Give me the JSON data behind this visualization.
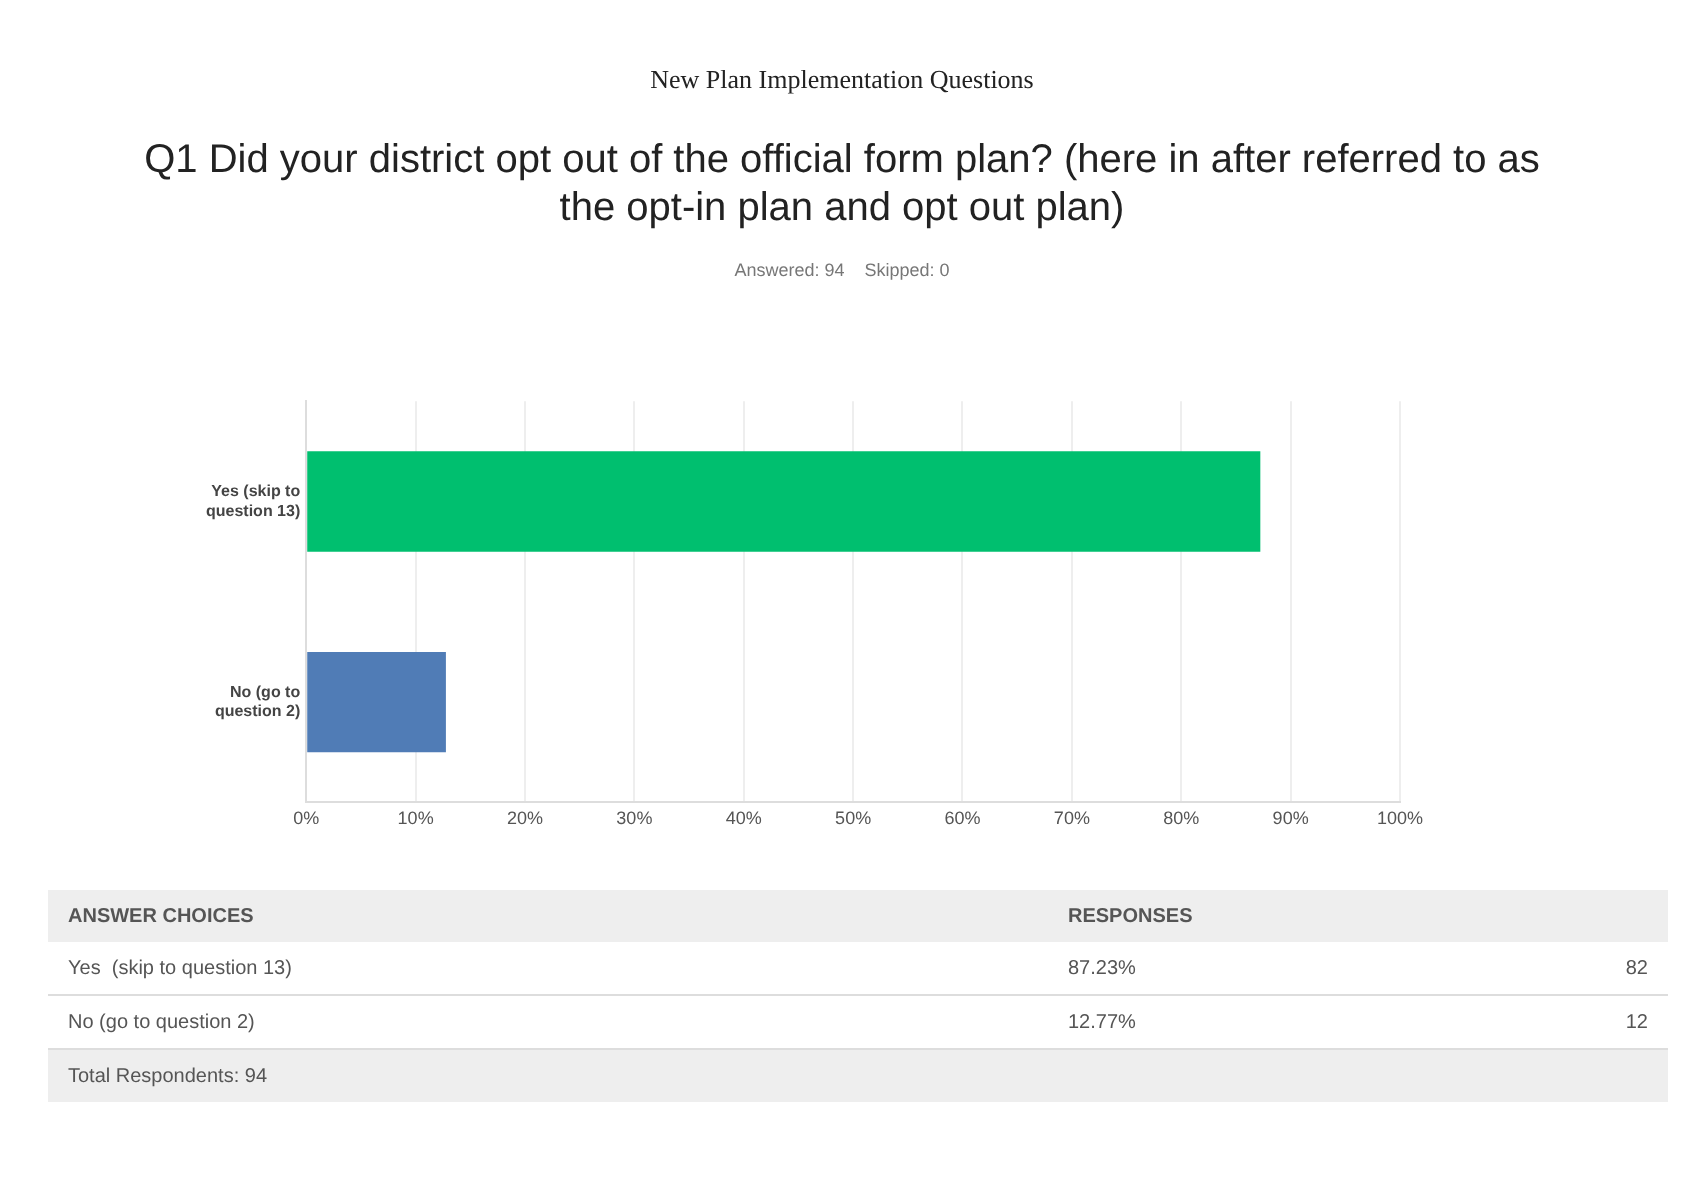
{
  "chart_data": {
    "type": "bar",
    "orientation": "horizontal",
    "title": "Q1 Did your district opt out of the official form plan? (here in after referred to as the opt-in plan and opt out plan)",
    "subtitle": "Answered: 94    Skipped: 0",
    "categories": [
      "Yes (skip to question 13)",
      "No (go to question 2)"
    ],
    "values": [
      87.23,
      12.77
    ],
    "colors": [
      "#00bf6f",
      "#507cb6"
    ],
    "xlim": [
      0,
      100
    ],
    "xticks": [
      {
        "value": 0,
        "label": "0%"
      },
      {
        "value": 10,
        "label": "10%"
      },
      {
        "value": 20,
        "label": "20%"
      },
      {
        "value": 30,
        "label": "30%"
      },
      {
        "value": 40,
        "label": "40%"
      },
      {
        "value": 50,
        "label": "50%"
      },
      {
        "value": 60,
        "label": "60%"
      },
      {
        "value": 70,
        "label": "70%"
      },
      {
        "value": 80,
        "label": "80%"
      },
      {
        "value": 90,
        "label": "90%"
      },
      {
        "value": 100,
        "label": "100%"
      }
    ],
    "grid": "x",
    "legend": false,
    "annotations": [
      "New Plan Implementation Questions",
      "ANSWER CHOICES",
      "RESPONSES",
      "Yes  (skip to question 13)",
      "87.23%",
      "82",
      "No (go to question 2)",
      "12.77%",
      "12",
      "Total Respondents: 94"
    ]
  }
}
